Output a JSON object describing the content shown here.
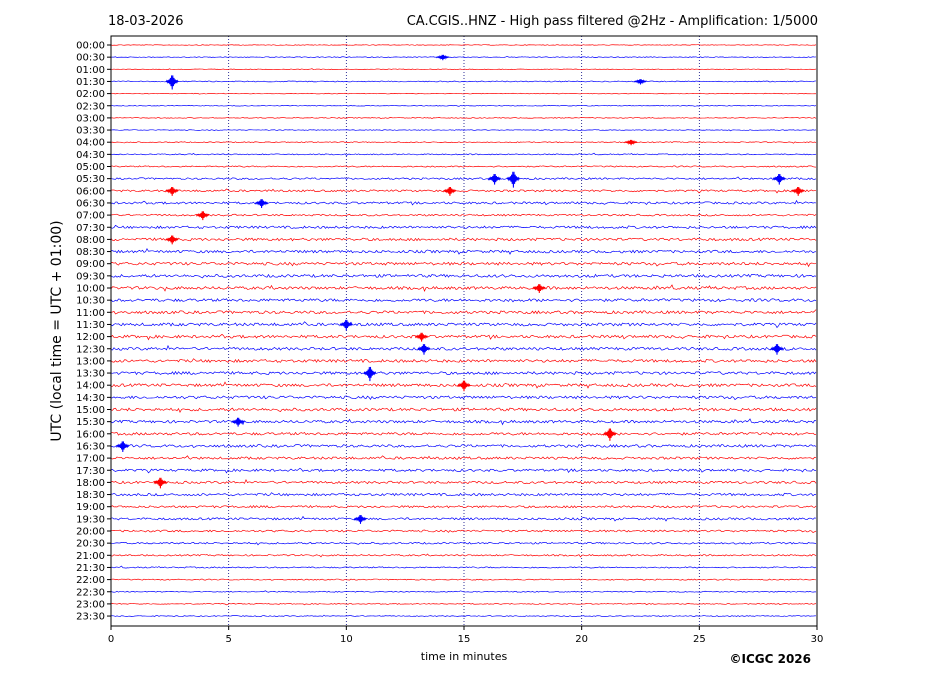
{
  "chart_data": {
    "type": "line",
    "title": "CA.CGIS..HNZ - High pass filtered @2Hz - Amplification: 1/5000",
    "date": "18-03-2026",
    "xlabel": "time in minutes",
    "ylabel": "UTC (local time = UTC + 01:00)",
    "xlim": [
      0,
      30
    ],
    "xticks": [
      0,
      5,
      10,
      15,
      20,
      25,
      30
    ],
    "rows": [
      "00:00",
      "00:30",
      "01:00",
      "01:30",
      "02:00",
      "02:30",
      "03:00",
      "03:30",
      "04:00",
      "04:30",
      "05:00",
      "05:30",
      "06:00",
      "06:30",
      "07:00",
      "07:30",
      "08:00",
      "08:30",
      "09:00",
      "09:30",
      "10:00",
      "10:30",
      "11:00",
      "11:30",
      "12:00",
      "12:30",
      "13:00",
      "13:30",
      "14:00",
      "14:30",
      "15:00",
      "15:30",
      "16:00",
      "16:30",
      "17:00",
      "17:30",
      "18:00",
      "18:30",
      "19:00",
      "19:30",
      "20:00",
      "20:30",
      "21:00",
      "21:30",
      "22:00",
      "22:30",
      "23:00",
      "23:30"
    ],
    "noise_levels": [
      0.6,
      0.7,
      0.6,
      0.9,
      0.6,
      0.6,
      0.7,
      0.7,
      0.9,
      1.0,
      1.2,
      1.6,
      1.8,
      2.0,
      1.6,
      2.2,
      2.4,
      2.4,
      2.6,
      2.6,
      2.6,
      2.6,
      2.6,
      2.6,
      2.6,
      2.6,
      2.6,
      2.6,
      2.6,
      2.6,
      2.6,
      2.4,
      2.4,
      2.4,
      2.2,
      2.2,
      2.2,
      2.2,
      2.0,
      2.0,
      1.8,
      1.6,
      1.4,
      1.2,
      1.0,
      0.9,
      0.8,
      0.8
    ],
    "events": [
      {
        "row": "00:30",
        "minute": 14.1,
        "amp": 3
      },
      {
        "row": "01:30",
        "minute": 2.6,
        "amp": 8
      },
      {
        "row": "01:30",
        "minute": 22.5,
        "amp": 3
      },
      {
        "row": "04:00",
        "minute": 22.1,
        "amp": 3
      },
      {
        "row": "05:30",
        "minute": 16.3,
        "amp": 6
      },
      {
        "row": "05:30",
        "minute": 17.1,
        "amp": 9
      },
      {
        "row": "05:30",
        "minute": 28.4,
        "amp": 6
      },
      {
        "row": "06:00",
        "minute": 14.4,
        "amp": 5
      },
      {
        "row": "06:00",
        "minute": 2.6,
        "amp": 5
      },
      {
        "row": "06:00",
        "minute": 29.2,
        "amp": 5
      },
      {
        "row": "06:30",
        "minute": 6.4,
        "amp": 5
      },
      {
        "row": "07:00",
        "minute": 3.9,
        "amp": 5
      },
      {
        "row": "08:00",
        "minute": 2.6,
        "amp": 5
      },
      {
        "row": "10:00",
        "minute": 18.2,
        "amp": 5
      },
      {
        "row": "11:30",
        "minute": 10.0,
        "amp": 6
      },
      {
        "row": "12:00",
        "minute": 13.2,
        "amp": 5
      },
      {
        "row": "12:30",
        "minute": 13.3,
        "amp": 6
      },
      {
        "row": "12:30",
        "minute": 28.3,
        "amp": 6
      },
      {
        "row": "13:30",
        "minute": 11.0,
        "amp": 8
      },
      {
        "row": "14:00",
        "minute": 15.0,
        "amp": 6
      },
      {
        "row": "15:30",
        "minute": 5.4,
        "amp": 5
      },
      {
        "row": "16:00",
        "minute": 21.2,
        "amp": 7
      },
      {
        "row": "16:30",
        "minute": 0.5,
        "amp": 6
      },
      {
        "row": "18:00",
        "minute": 2.1,
        "amp": 6
      },
      {
        "row": "19:30",
        "minute": 10.6,
        "amp": 5
      }
    ],
    "colors": {
      "odd": "#ff0000",
      "even": "#0000ff",
      "axis": "#000000",
      "gridline": "#000080"
    },
    "grid": "vertical dotted at 5-minute ticks"
  },
  "copyright": "©ICGC 2026"
}
